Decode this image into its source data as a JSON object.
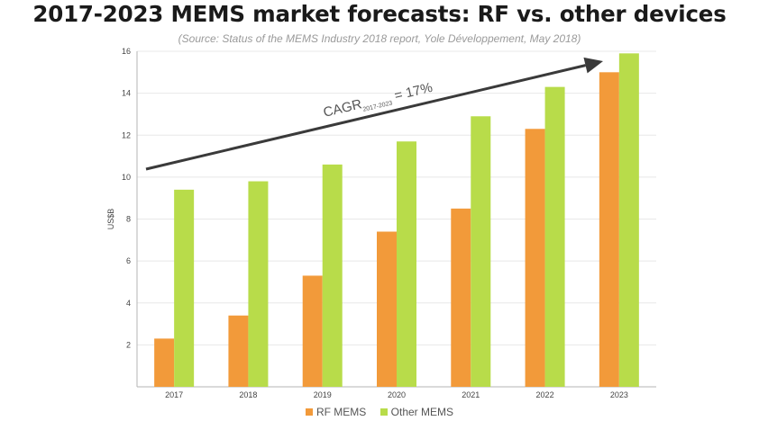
{
  "title": "2017-2023 MEMS market forecasts: RF vs. other devices",
  "subtitle": "(Source: Status of the MEMS Industry 2018 report, Yole Développement, May 2018)",
  "colors": {
    "rf": "#F29A3A",
    "other": "#B8DC4A",
    "grid": "#e8e8e8",
    "axis": "#b5b5b5",
    "arrow": "#3a3a3a"
  },
  "annotation": {
    "cagr_prefix": "CAGR",
    "cagr_sub": "2017-2023",
    "cagr_suffix": " = 17%"
  },
  "chart_data": {
    "type": "bar",
    "title": "2017-2023 MEMS market forecasts: RF vs. other devices",
    "subtitle": "(Source: Status of the MEMS Industry 2018 report, Yole Développement, May 2018)",
    "categories": [
      "2017",
      "2018",
      "2019",
      "2020",
      "2021",
      "2022",
      "2023"
    ],
    "series": [
      {
        "name": "RF MEMS",
        "values": [
          2.3,
          3.4,
          5.3,
          7.4,
          8.5,
          12.3,
          15.0
        ]
      },
      {
        "name": "Other MEMS",
        "values": [
          9.4,
          9.8,
          10.6,
          11.7,
          12.9,
          14.3,
          15.9
        ]
      }
    ],
    "ylabel": "US$B",
    "xlabel": "",
    "ylim": [
      0,
      16
    ],
    "yticks": [
      "2",
      "4",
      "6",
      "8",
      "10",
      "12",
      "14",
      "16"
    ],
    "grid": true,
    "legend": "bottom"
  }
}
